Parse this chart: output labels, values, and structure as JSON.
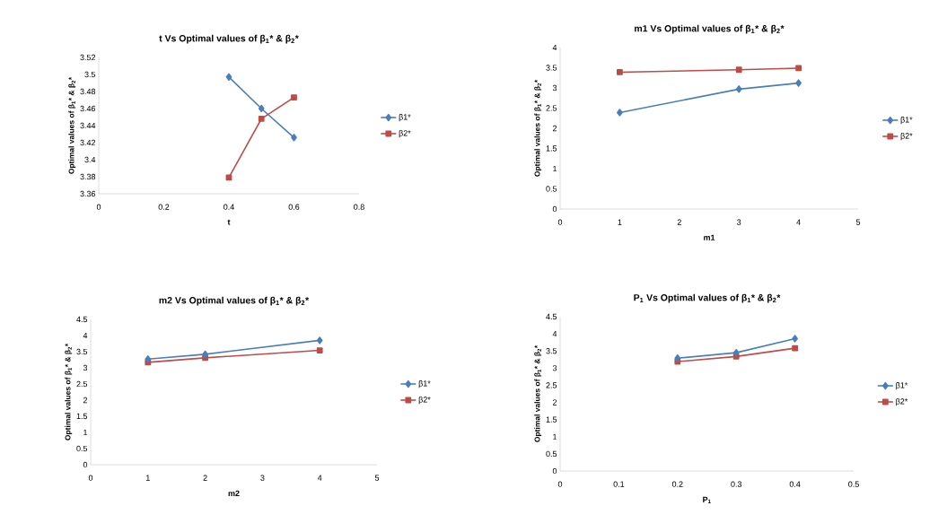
{
  "chart_data": [
    {
      "type": "line",
      "title": "t Vs Optimal values of  β$_{1}$* & β$_{2}$*",
      "xlabel": "t",
      "ylabel": "Optimal values of  β$_{1}$* & β$_{2}$*",
      "x": [
        0.4,
        0.5,
        0.6
      ],
      "series": [
        {
          "name": "β1*",
          "color": "#4a7ebb",
          "marker": "diamond",
          "values": [
            3.497,
            3.46,
            3.426
          ]
        },
        {
          "name": "β2*",
          "color": "#be4b48",
          "marker": "square",
          "values": [
            3.379,
            3.448,
            3.473
          ]
        }
      ],
      "xlim": [
        0,
        0.8
      ],
      "xticks": [
        0,
        0.2,
        0.4,
        0.6,
        0.8
      ],
      "ylim": [
        3.36,
        3.52
      ],
      "yticks": [
        3.36,
        3.38,
        3.4,
        3.42,
        3.44,
        3.46,
        3.48,
        3.5,
        3.52
      ],
      "legend": "right"
    },
    {
      "type": "line",
      "title": "m1 Vs Optimal values of  β$_{1}$* & β$_{2}$*",
      "xlabel": "m1",
      "ylabel": "Optimal values of  β$_{1}$* & β$_{2}$*",
      "x": [
        1,
        3,
        4
      ],
      "series": [
        {
          "name": "β1*",
          "color": "#4a7ebb",
          "marker": "diamond",
          "values": [
            2.39,
            2.97,
            3.12
          ]
        },
        {
          "name": "β2*",
          "color": "#be4b48",
          "marker": "square",
          "values": [
            3.39,
            3.45,
            3.49
          ]
        }
      ],
      "xlim": [
        0,
        5
      ],
      "xticks": [
        0,
        1,
        2,
        3,
        4,
        5
      ],
      "ylim": [
        0,
        4
      ],
      "yticks": [
        0,
        0.5,
        1,
        1.5,
        2,
        2.5,
        3,
        3.5,
        4
      ],
      "legend": "right"
    },
    {
      "type": "line",
      "title": "m2 Vs Optimal values of  β$_{1}$* & β$_{2}$*",
      "xlabel": "m2",
      "ylabel": "Optimal values of  β$_{1}$* & β$_{2}$*",
      "x": [
        1,
        2,
        4
      ],
      "series": [
        {
          "name": "β1*",
          "color": "#4a7ebb",
          "marker": "diamond",
          "values": [
            3.27,
            3.42,
            3.85
          ]
        },
        {
          "name": "β2*",
          "color": "#be4b48",
          "marker": "square",
          "values": [
            3.17,
            3.31,
            3.54
          ]
        }
      ],
      "xlim": [
        0,
        5
      ],
      "xticks": [
        0,
        1,
        2,
        3,
        4,
        5
      ],
      "ylim": [
        0,
        4.5
      ],
      "yticks": [
        0,
        0.5,
        1,
        1.5,
        2,
        2.5,
        3,
        3.5,
        4,
        4.5
      ],
      "legend": "right"
    },
    {
      "type": "line",
      "title": "P$_{1}$ Vs Optimal values of  β$_{1}$* & β$_{2}$*",
      "xlabel": "P$_{1}$",
      "ylabel": "Optimal values of  β$_{1}$* & β$_{2}$*",
      "x": [
        0.2,
        0.3,
        0.4
      ],
      "series": [
        {
          "name": "β1*",
          "color": "#4a7ebb",
          "marker": "diamond",
          "values": [
            3.29,
            3.45,
            3.86
          ]
        },
        {
          "name": "β2*",
          "color": "#be4b48",
          "marker": "square",
          "values": [
            3.19,
            3.34,
            3.58
          ]
        }
      ],
      "xlim": [
        0,
        0.5
      ],
      "xticks": [
        0,
        0.1,
        0.2,
        0.3,
        0.4,
        0.5
      ],
      "ylim": [
        0,
        4.5
      ],
      "yticks": [
        0,
        0.5,
        1,
        1.5,
        2,
        2.5,
        3,
        3.5,
        4,
        4.5
      ],
      "legend": "right"
    }
  ]
}
